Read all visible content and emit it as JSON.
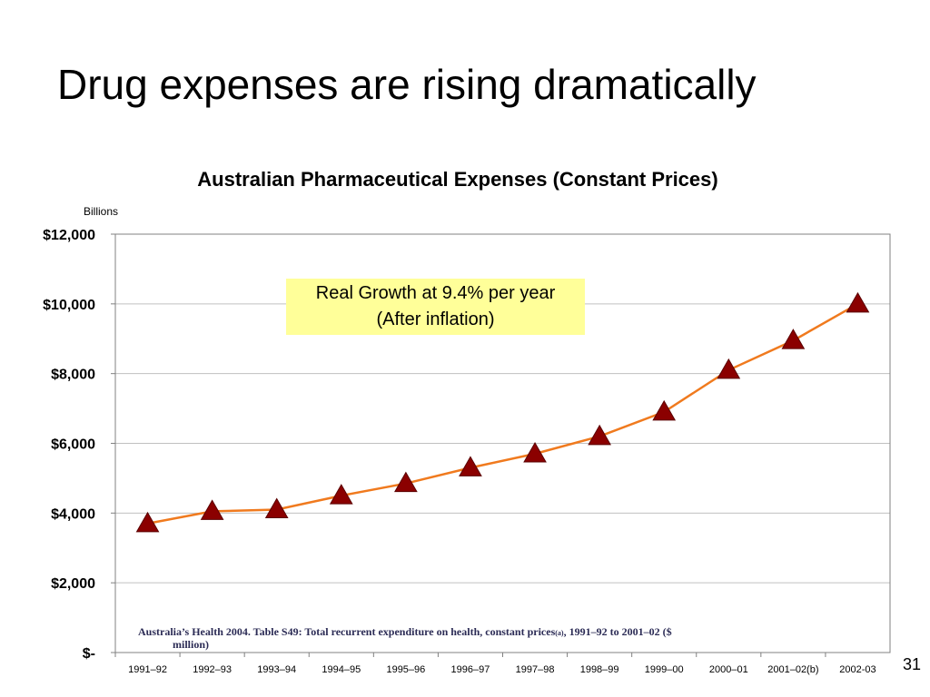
{
  "slide": {
    "title": "Drug expenses are rising dramatically",
    "page_number": "31"
  },
  "annotation": {
    "line1": "Real Growth at 9.4% per year",
    "line2": "(After inflation)"
  },
  "source": {
    "part1": "Australia’s Health 2004. Table S49: Total recurrent expenditure on health, constant prices",
    "sub": "(a)",
    "part2": ", 1991–92 to 2001–02 ($",
    "part3": "million)"
  },
  "colors": {
    "line": "#f07a1e",
    "marker": "#8b0000",
    "grid": "#c0c0c0",
    "annotation_bg": "#ffff99"
  },
  "chart_data": {
    "type": "line",
    "title": "Australian Pharmaceutical Expenses (Constant Prices)",
    "ylabel": "Billions",
    "xlabel": "",
    "categories": [
      "1991–92",
      "1992–93",
      "1993–94",
      "1994–95",
      "1995–96",
      "1996–97",
      "1997–98",
      "1998–99",
      "1999–00",
      "2000–01",
      "2001–02(b)",
      "2002-03"
    ],
    "series": [
      {
        "values": [
          3700,
          4050,
          4100,
          4500,
          4850,
          5300,
          5700,
          6200,
          6900,
          8100,
          8950,
          10000
        ],
        "marker": "triangle"
      }
    ],
    "ylim": [
      0,
      12000
    ],
    "yticks": [
      0,
      2000,
      4000,
      6000,
      8000,
      10000,
      12000
    ],
    "ytick_labels": [
      "$-",
      "$2,000",
      "$4,000",
      "$6,000",
      "$8,000",
      "$10,000",
      "$12,000"
    ],
    "grid": true,
    "legend": "none"
  }
}
